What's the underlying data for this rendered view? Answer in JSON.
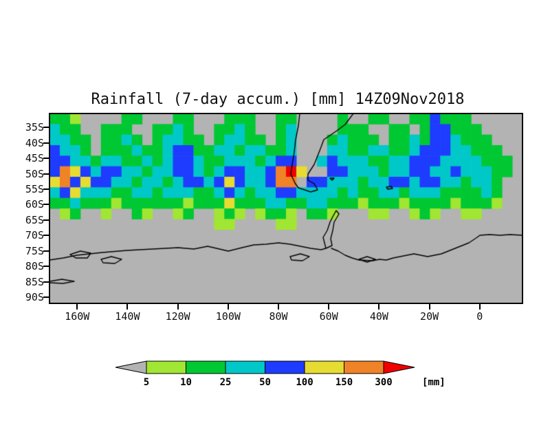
{
  "title": "Rainfall (7-day accum.) [mm] 14Z09Nov2018",
  "colors": {
    "background": "#ffffff",
    "nodata_gray": "#b3b3b3",
    "coastline": "#000000",
    "axis": "#000000",
    "text": "#111111"
  },
  "chart_data": {
    "type": "heatmap",
    "title": "Rainfall (7-day accum.) [mm] 14Z09Nov2018",
    "variable": "7-day accumulated rainfall",
    "unit": "mm",
    "valid_time_label": "14Z09Nov2018",
    "x_axis": {
      "tick_labels": [
        "160W",
        "140W",
        "120W",
        "100W",
        "80W",
        "60W",
        "40W",
        "20W",
        "0"
      ],
      "tick_lons": [
        -160,
        -140,
        -120,
        -100,
        -80,
        -60,
        -40,
        -20,
        0
      ],
      "lon_range": [
        -171,
        17
      ]
    },
    "y_axis": {
      "tick_labels": [
        "35S",
        "40S",
        "45S",
        "50S",
        "55S",
        "60S",
        "65S",
        "70S",
        "75S",
        "80S",
        "85S",
        "90S"
      ],
      "tick_lats": [
        -35,
        -40,
        -45,
        -50,
        -55,
        -60,
        -65,
        -70,
        -75,
        -80,
        -85,
        -90
      ],
      "lat_range": [
        -30.5,
        -92
      ]
    },
    "legend": {
      "unit_label": "[mm]",
      "boundary_labels": [
        "5",
        "10",
        "25",
        "50",
        "100",
        "150",
        "300"
      ],
      "segment_colors": [
        "#b3b3b3",
        "#a0e632",
        "#00c832",
        "#00c8c8",
        "#1e3cff",
        "#e6dc32",
        "#f08228",
        "#f00000"
      ],
      "segment_meanings": [
        "<5",
        "5-10",
        "10-25",
        "25-50",
        "50-100",
        "100-150",
        "150-300",
        ">300"
      ],
      "legend_position": "bottom"
    },
    "grid": {
      "cols": 46,
      "rows": 18,
      "encoding": "each character is a level index 0-7 into legend.segment_colors; row 0 = ~32S band, row 17 = ~90S band; col 0 = ~171W, col 45 = ~17E",
      "rows_data": [
        "2210000220002200022200220000200220022422200000",
        "3220022200223200223200230000222002202442220000",
        "3322022320233220233220230002322202232443222000",
        "4332022232234422332332230003322332234443322200",
        "4433233223234432233323440034333223344433332220",
        "4654344332334432344334675004433323344334333220",
        "5645443323323443454334660443332334434433233200",
        "3453332233233322343233443333232233233322223200",
        "2232221222222122252223322332221222122221222100",
        "0120010021001200121012210221000110012100110000",
        "0000000000000000110000110000000000000000000000",
        "0000000000000000000000000000000000000000000000",
        "0000000000000000000000000000000000000000000000",
        "0000000000000000000000000000000000000000000000",
        "0000000000000000000000000000000000000000000000",
        "0000000000000000000000000000000000000000000000",
        "0000000000000000000000000000000000000000000000",
        "0000000000000000000000000000000000000000000000"
      ]
    }
  },
  "map_overlay": {
    "coastline_color": "#000000",
    "paths": [
      [
        [
          364,
          0
        ],
        [
          362,
          18
        ],
        [
          358,
          38
        ],
        [
          356,
          56
        ],
        [
          353,
          74
        ],
        [
          351,
          88
        ],
        [
          357,
          101
        ],
        [
          362,
          108
        ],
        [
          380,
          114
        ],
        [
          390,
          111
        ],
        [
          385,
          102
        ],
        [
          376,
          97
        ],
        [
          376,
          88
        ],
        [
          385,
          74
        ],
        [
          393,
          54
        ],
        [
          399,
          38
        ],
        [
          418,
          25
        ],
        [
          430,
          16
        ],
        [
          442,
          0
        ]
      ],
      [
        [
          402,
          196
        ],
        [
          398,
          180
        ],
        [
          404,
          170
        ],
        [
          408,
          158
        ],
        [
          412,
          150
        ],
        [
          417,
          141
        ],
        [
          421,
          146
        ],
        [
          414,
          158
        ],
        [
          412,
          170
        ],
        [
          409,
          182
        ],
        [
          411,
          192
        ],
        [
          402,
          196
        ]
      ],
      [
        [
          0,
          213
        ],
        [
          20,
          210
        ],
        [
          40,
          206
        ],
        [
          77,
          202
        ],
        [
          113,
          199
        ],
        [
          150,
          197
        ],
        [
          187,
          195
        ],
        [
          210,
          197
        ],
        [
          230,
          193
        ],
        [
          260,
          200
        ],
        [
          280,
          195
        ],
        [
          297,
          191
        ],
        [
          315,
          190
        ],
        [
          333,
          188
        ],
        [
          350,
          190
        ],
        [
          365,
          193
        ],
        [
          380,
          196
        ],
        [
          395,
          198
        ],
        [
          402,
          196
        ]
      ],
      [
        [
          410,
          196
        ],
        [
          420,
          200
        ],
        [
          430,
          206
        ],
        [
          440,
          210
        ],
        [
          450,
          213
        ],
        [
          470,
          214
        ],
        [
          480,
          212
        ],
        [
          490,
          213
        ],
        [
          500,
          210
        ],
        [
          510,
          208
        ],
        [
          520,
          206
        ],
        [
          530,
          204
        ],
        [
          540,
          206
        ],
        [
          550,
          208
        ],
        [
          560,
          206
        ],
        [
          570,
          204
        ],
        [
          580,
          200
        ],
        [
          590,
          196
        ],
        [
          600,
          192
        ],
        [
          610,
          188
        ],
        [
          616,
          184
        ],
        [
          622,
          180
        ],
        [
          626,
          177
        ],
        [
          640,
          176
        ],
        [
          655,
          177
        ],
        [
          670,
          176
        ],
        [
          688,
          177
        ]
      ],
      [
        [
          30,
          205
        ],
        [
          45,
          200
        ],
        [
          60,
          203
        ],
        [
          55,
          210
        ],
        [
          38,
          210
        ],
        [
          30,
          205
        ]
      ],
      [
        [
          75,
          212
        ],
        [
          90,
          208
        ],
        [
          105,
          212
        ],
        [
          95,
          218
        ],
        [
          78,
          217
        ],
        [
          75,
          212
        ]
      ],
      [
        [
          0,
          244
        ],
        [
          18,
          241
        ],
        [
          36,
          244
        ],
        [
          20,
          247
        ],
        [
          0,
          246
        ]
      ],
      [
        [
          450,
          212
        ],
        [
          462,
          208
        ],
        [
          474,
          212
        ],
        [
          462,
          216
        ],
        [
          450,
          212
        ]
      ],
      [
        [
          350,
          208
        ],
        [
          365,
          204
        ],
        [
          378,
          208
        ],
        [
          368,
          214
        ],
        [
          352,
          213
        ],
        [
          350,
          208
        ]
      ],
      [
        [
          408,
          94
        ],
        [
          414,
          94
        ],
        [
          411,
          97
        ],
        [
          408,
          94
        ]
      ],
      [
        [
          490,
          107
        ],
        [
          497,
          106
        ],
        [
          499,
          109
        ],
        [
          492,
          110
        ],
        [
          490,
          107
        ]
      ]
    ]
  }
}
